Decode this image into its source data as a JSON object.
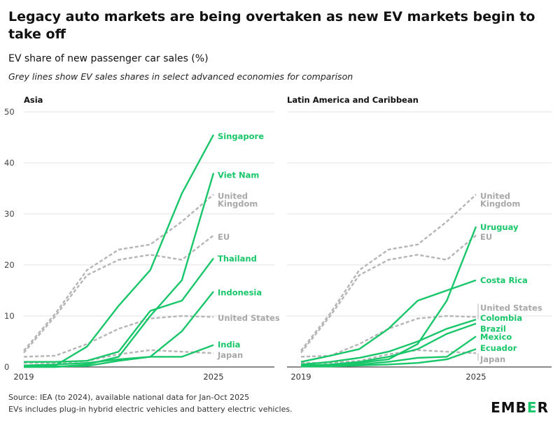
{
  "title": "Legacy auto markets are being overtaken as new EV markets begin to take off",
  "subtitle": "EV share of new passenger car sales (%)",
  "note": "Grey lines show EV sales shares in select advanced economies for comparison",
  "footer": {
    "source": "Source: IEA (to 2024), available national data for Jan-Oct 2025",
    "definition": "EVs includes plug-in hybrid electric vehicles and battery electric vehicles."
  },
  "logo": {
    "before": "EMB",
    "accent": "E",
    "after": "R"
  },
  "colors": {
    "green": "#19c66a",
    "grey": "#b5b5b5",
    "axis": "#444444",
    "grid": "#e3e3e3"
  },
  "chart_data": [
    {
      "type": "line",
      "title": "Asia",
      "x": [
        2019,
        2020,
        2021,
        2022,
        2023,
        2024,
        2025
      ],
      "xticks": [
        2019,
        2025
      ],
      "ylim": [
        0,
        50
      ],
      "yticks": [
        0,
        10,
        20,
        30,
        40,
        50
      ],
      "grid": true,
      "series": [
        {
          "name": "Singapore",
          "group": "highlight",
          "values": [
            0.1,
            0.3,
            4,
            12,
            19,
            34,
            45.5
          ]
        },
        {
          "name": "Viet Nam",
          "group": "highlight",
          "values": [
            0,
            0,
            0.5,
            2,
            10,
            17,
            38
          ]
        },
        {
          "name": "Thailand",
          "group": "highlight",
          "values": [
            1,
            1,
            1.2,
            3,
            11,
            13,
            21.3
          ]
        },
        {
          "name": "Indonesia",
          "group": "highlight",
          "values": [
            0,
            0.1,
            0.2,
            1.2,
            2,
            7,
            14.8
          ]
        },
        {
          "name": "India",
          "group": "highlight",
          "values": [
            0.3,
            0.5,
            0.8,
            1.5,
            2,
            2,
            4.3
          ]
        },
        {
          "name": "United Kingdom",
          "group": "comparison",
          "values": [
            3.2,
            10.5,
            19,
            23,
            24,
            28.5,
            33.8
          ]
        },
        {
          "name": "EU",
          "group": "comparison",
          "values": [
            2.8,
            10,
            18,
            21,
            22,
            21,
            25.8
          ]
        },
        {
          "name": "United States",
          "group": "comparison",
          "values": [
            2,
            2.2,
            4.5,
            7.5,
            9.5,
            10,
            9.8
          ]
        },
        {
          "name": "Japan",
          "group": "comparison",
          "values": [
            0.8,
            0.8,
            1.2,
            2.5,
            3.3,
            3,
            2.7
          ]
        }
      ],
      "labels": [
        {
          "series": "Singapore",
          "lines": [
            "Singapore"
          ],
          "at": 45.2,
          "color": "green"
        },
        {
          "series": "Viet Nam",
          "lines": [
            "Viet Nam"
          ],
          "at": 37.6,
          "color": "green"
        },
        {
          "series": "United Kingdom",
          "lines": [
            "United",
            "Kingdom"
          ],
          "at": 32.7,
          "color": "grey"
        },
        {
          "series": "EU",
          "lines": [
            "EU"
          ],
          "at": 25.5,
          "color": "grey"
        },
        {
          "series": "Thailand",
          "lines": [
            "Thailand"
          ],
          "at": 21.2,
          "color": "green"
        },
        {
          "series": "Indonesia",
          "lines": [
            "Indonesia"
          ],
          "at": 14.6,
          "color": "green"
        },
        {
          "series": "United States",
          "lines": [
            "United States"
          ],
          "at": 9.6,
          "color": "grey"
        },
        {
          "series": "India",
          "lines": [
            "India"
          ],
          "at": 4.4,
          "color": "green"
        },
        {
          "series": "Japan",
          "lines": [
            "Japan"
          ],
          "at": 2.3,
          "color": "grey"
        }
      ]
    },
    {
      "type": "line",
      "title": "Latin America and Caribbean",
      "x": [
        2019,
        2020,
        2021,
        2022,
        2023,
        2024,
        2025
      ],
      "xticks": [
        2019,
        2025
      ],
      "ylim": [
        0,
        50
      ],
      "yticks": [
        0,
        10,
        20,
        30,
        40,
        50
      ],
      "grid": true,
      "series": [
        {
          "name": "Uruguay",
          "group": "highlight",
          "values": [
            0.1,
            0.3,
            0.8,
            1.5,
            4.5,
            13,
            27.5
          ]
        },
        {
          "name": "Costa Rica",
          "group": "highlight",
          "values": [
            1,
            2.2,
            3.5,
            7.5,
            13,
            15,
            17
          ]
        },
        {
          "name": "Colombia",
          "group": "highlight",
          "values": [
            0.5,
            1,
            1.8,
            3,
            5,
            7.5,
            9.3
          ]
        },
        {
          "name": "Brazil",
          "group": "highlight",
          "values": [
            0.3,
            0.5,
            1,
            2,
            3.5,
            6.5,
            8.5
          ]
        },
        {
          "name": "Mexico",
          "group": "highlight",
          "values": [
            0.2,
            0.3,
            0.5,
            1,
            1.8,
            2,
            6
          ]
        },
        {
          "name": "Ecuador",
          "group": "highlight",
          "values": [
            0.1,
            0.1,
            0.3,
            0.5,
            0.8,
            1.5,
            3.5
          ]
        },
        {
          "name": "United Kingdom",
          "group": "comparison",
          "values": [
            3.2,
            10.5,
            19,
            23,
            24,
            28.5,
            33.8
          ]
        },
        {
          "name": "EU",
          "group": "comparison",
          "values": [
            2.8,
            10,
            18,
            21,
            22,
            21,
            25.8
          ]
        },
        {
          "name": "United States",
          "group": "comparison",
          "values": [
            2,
            2.2,
            4.5,
            7.5,
            9.5,
            10,
            9.8
          ]
        },
        {
          "name": "Japan",
          "group": "comparison",
          "values": [
            0.8,
            0.8,
            1.2,
            2.5,
            3.3,
            3,
            2.7
          ]
        }
      ],
      "labels": [
        {
          "series": "United Kingdom",
          "lines": [
            "United",
            "Kingdom"
          ],
          "at": 32.7,
          "color": "grey"
        },
        {
          "series": "Uruguay",
          "lines": [
            "Uruguay"
          ],
          "at": 27.4,
          "color": "green"
        },
        {
          "series": "EU",
          "lines": [
            "EU"
          ],
          "at": 25.5,
          "color": "grey"
        },
        {
          "series": "Costa Rica",
          "lines": [
            "Costa Rica"
          ],
          "at": 17,
          "color": "green"
        },
        {
          "series": "United States",
          "lines": [
            "United States"
          ],
          "at": 11.6,
          "color": "grey"
        },
        {
          "series": "Colombia",
          "lines": [
            "Colombia"
          ],
          "at": 9.6,
          "color": "green"
        },
        {
          "series": "Brazil",
          "lines": [
            "Brazil"
          ],
          "at": 7.5,
          "color": "green"
        },
        {
          "series": "Mexico",
          "lines": [
            "Mexico"
          ],
          "at": 5.9,
          "color": "green"
        },
        {
          "series": "Ecuador",
          "lines": [
            "Ecuador"
          ],
          "at": 3.7,
          "color": "green"
        },
        {
          "series": "Japan",
          "lines": [
            "Japan"
          ],
          "at": 1.5,
          "color": "grey"
        }
      ]
    }
  ]
}
